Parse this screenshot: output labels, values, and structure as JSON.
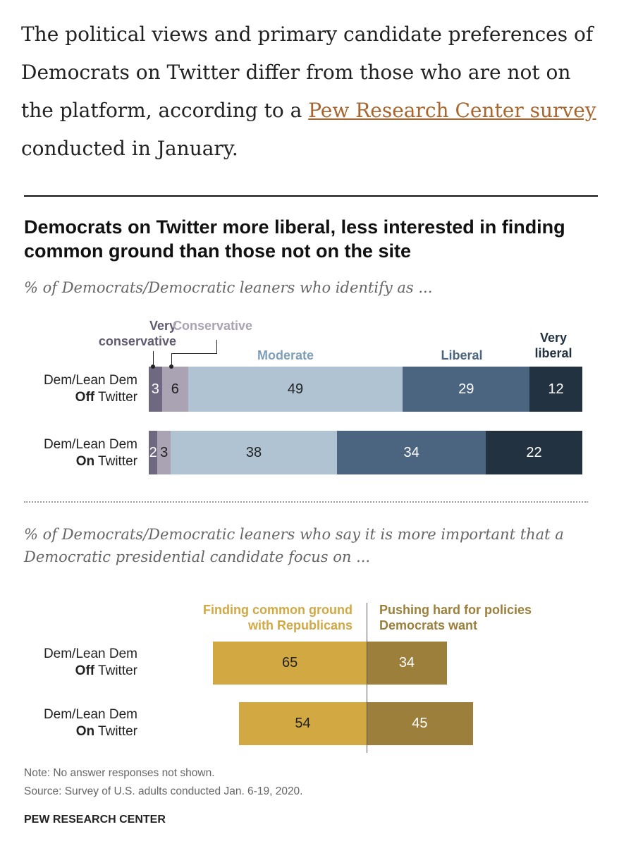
{
  "intro": {
    "text_before": "The political views and primary candidate preferences of Democrats on Twitter differ from those who are not on the platform, according to a ",
    "link": "Pew Research Center survey",
    "text_after": " conducted in January."
  },
  "chart_data": [
    {
      "type": "bar",
      "stacked": true,
      "orientation": "horizontal",
      "title": "Democrats on Twitter more liberal, less interested in finding common ground than those not on the site",
      "subtitle": "% of Democrats/Democratic leaners who identify as ...",
      "categories": [
        {
          "line1": "Dem/Lean Dem",
          "bold": "Off",
          "rest": " Twitter"
        },
        {
          "line1": "Dem/Lean Dem",
          "bold": "On",
          "rest": " Twitter"
        }
      ],
      "series": [
        {
          "name": "Very conservative",
          "label_lines": [
            "Very",
            "conservative"
          ],
          "color": "#6e6980",
          "label_color": "#5f5a70",
          "text_color": "#fff",
          "values": [
            3,
            2
          ]
        },
        {
          "name": "Conservative",
          "label_lines": [
            "Conservative"
          ],
          "color": "#a9a3b3",
          "label_color": "#a9a3b3",
          "text_color": "#222",
          "values": [
            6,
            3
          ]
        },
        {
          "name": "Moderate",
          "label_lines": [
            "Moderate"
          ],
          "color": "#afc3d2",
          "label_color": "#7e9fb7",
          "text_color": "#222",
          "values": [
            49,
            38
          ]
        },
        {
          "name": "Liberal",
          "label_lines": [
            "Liberal"
          ],
          "color": "#4b6580",
          "label_color": "#4b6580",
          "text_color": "#fff",
          "values": [
            29,
            34
          ]
        },
        {
          "name": "Very liberal",
          "label_lines": [
            "Very",
            "liberal"
          ],
          "color": "#233241",
          "label_color": "#233241",
          "text_color": "#fff",
          "values": [
            12,
            22
          ]
        }
      ]
    },
    {
      "type": "bar",
      "diverging": true,
      "orientation": "horizontal",
      "subtitle": "% of Democrats/Democratic leaners who say it is more important that a Democratic presidential candidate focus on ...",
      "categories": [
        {
          "line1": "Dem/Lean Dem",
          "bold": "Off",
          "rest": " Twitter"
        },
        {
          "line1": "Dem/Lean Dem",
          "bold": "On",
          "rest": " Twitter"
        }
      ],
      "series": [
        {
          "name": "Finding common ground with Republicans",
          "label_lines": [
            "Finding common ground",
            "with Republicans"
          ],
          "color": "#d2a843",
          "text_color": "#222",
          "values": [
            65,
            54
          ]
        },
        {
          "name": "Pushing hard for policies Democrats want",
          "label_lines": [
            "Pushing hard for policies",
            "Democrats want"
          ],
          "color": "#9c7f3a",
          "text_color": "#fff",
          "values": [
            34,
            45
          ]
        }
      ]
    }
  ],
  "footer": {
    "note": "Note: No answer responses not shown.",
    "source": "Source: Survey of U.S. adults conducted Jan. 6-19, 2020.",
    "brand": "PEW RESEARCH CENTER"
  }
}
